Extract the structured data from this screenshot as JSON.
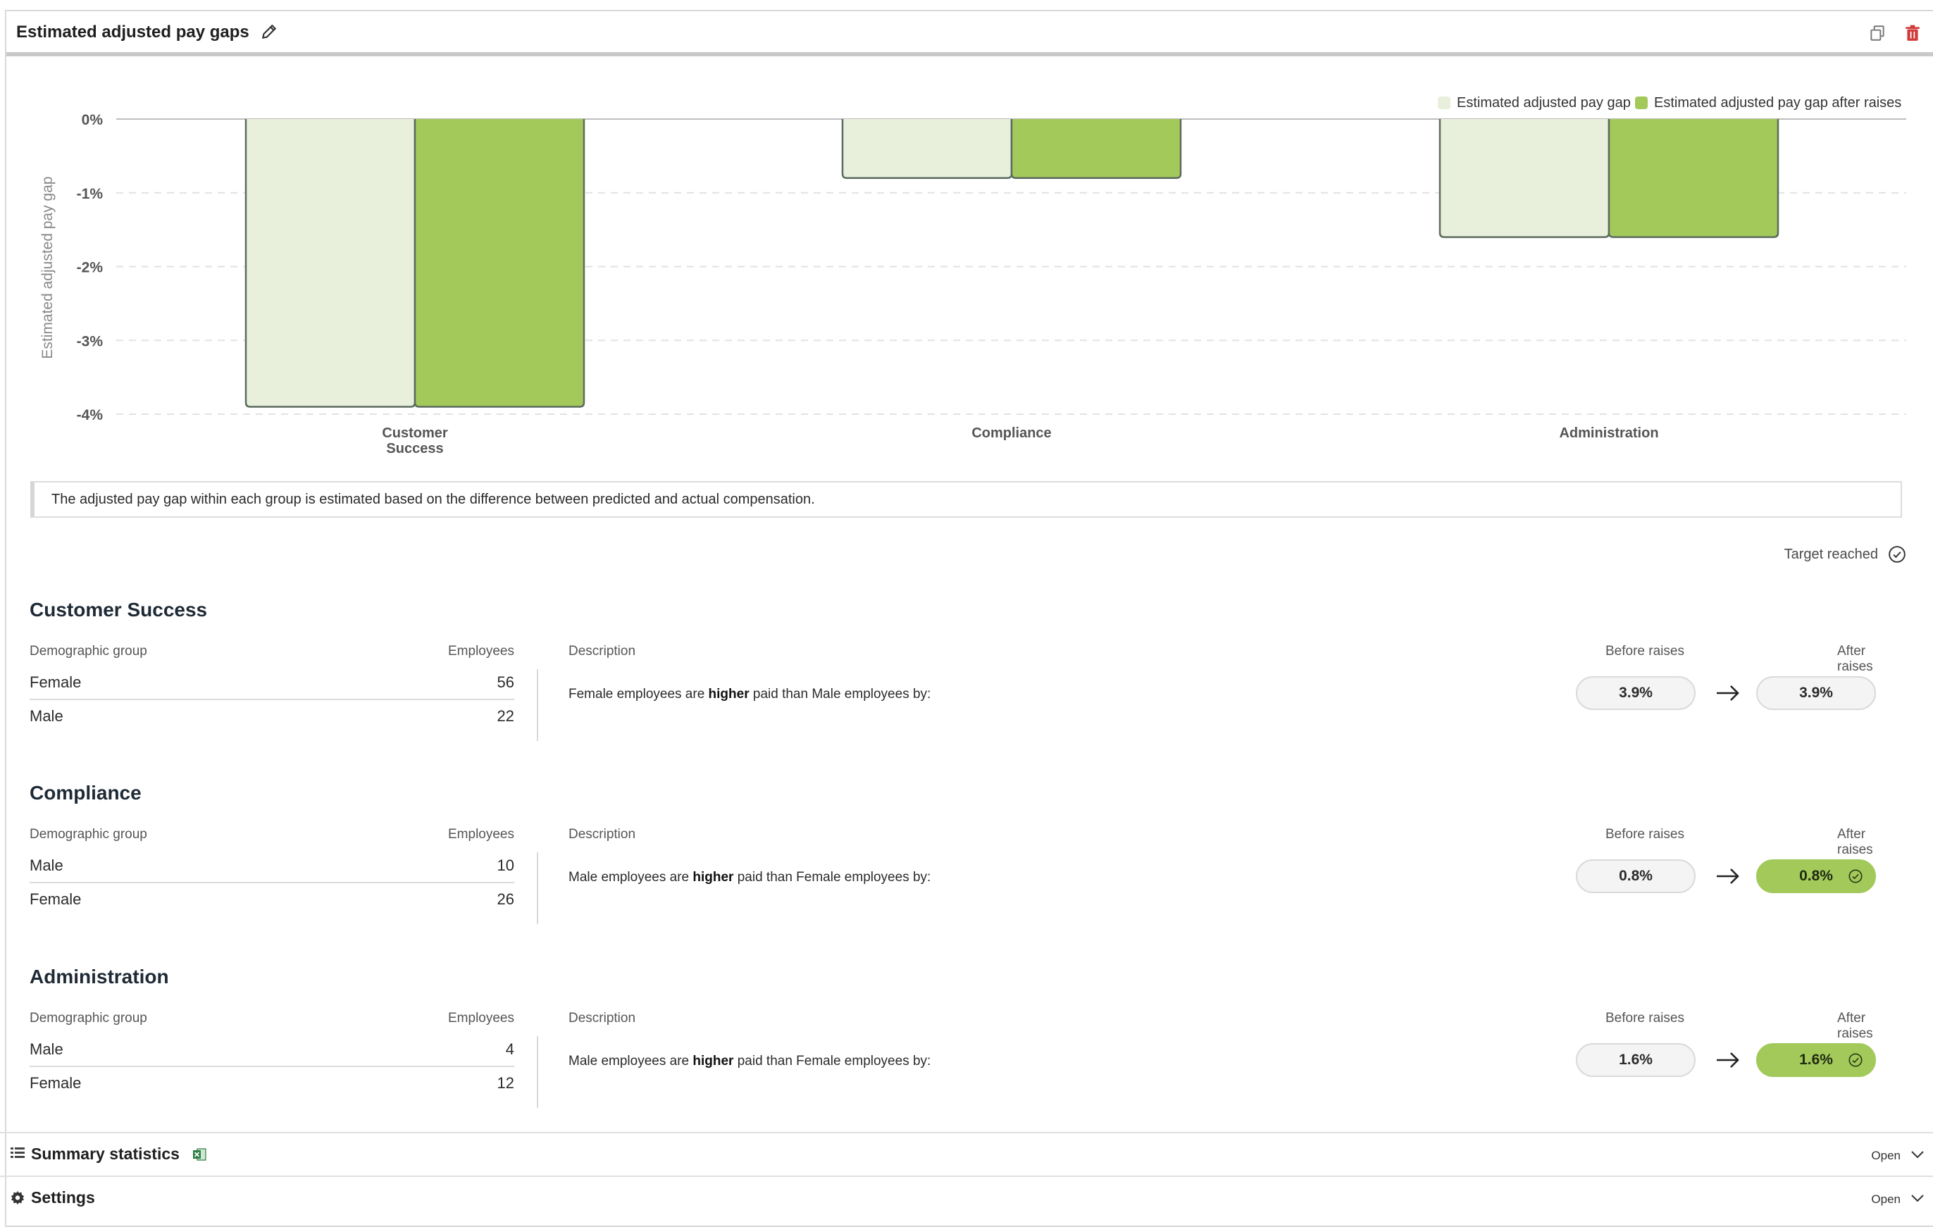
{
  "header": {
    "title": "Estimated adjusted pay gaps"
  },
  "chart_data": {
    "type": "bar",
    "ylabel": "Estimated adjusted pay gap",
    "xlabel": "",
    "ylim": [
      -4,
      0
    ],
    "yticks": [
      "0%",
      "-1%",
      "-2%",
      "-3%",
      "-4%"
    ],
    "grid": true,
    "legend_position": "top-right",
    "categories": [
      [
        "Customer",
        "Success"
      ],
      [
        "Compliance"
      ],
      [
        "Administration"
      ]
    ],
    "series": [
      {
        "name": "Estimated adjusted pay gap",
        "color": "#e8f0dc",
        "values": [
          -3.9,
          -0.8,
          -1.6
        ]
      },
      {
        "name": "Estimated adjusted pay gap after raises",
        "color": "#a3c95a",
        "values": [
          -3.9,
          -0.8,
          -1.6
        ]
      }
    ]
  },
  "note": "The adjusted pay gap within each group is estimated based on the difference between predicted and actual compensation.",
  "target_label": "Target reached",
  "columns": {
    "demographic": "Demographic group",
    "employees": "Employees",
    "description": "Description",
    "before": "Before raises",
    "after": "After raises"
  },
  "groups": [
    {
      "title": "Customer Success",
      "rows": [
        {
          "name": "Female",
          "count": "56"
        },
        {
          "name": "Male",
          "count": "22"
        }
      ],
      "desc_pre": "Female employees are",
      "desc_bold": "higher",
      "desc_post": "paid than Male employees by:",
      "before": "3.9%",
      "after": "3.9%",
      "after_reached": false
    },
    {
      "title": "Compliance",
      "rows": [
        {
          "name": "Male",
          "count": "10"
        },
        {
          "name": "Female",
          "count": "26"
        }
      ],
      "desc_pre": "Male employees are",
      "desc_bold": "higher",
      "desc_post": "paid than Female employees by:",
      "before": "0.8%",
      "after": "0.8%",
      "after_reached": true
    },
    {
      "title": "Administration",
      "rows": [
        {
          "name": "Male",
          "count": "4"
        },
        {
          "name": "Female",
          "count": "12"
        }
      ],
      "desc_pre": "Male employees are",
      "desc_bold": "higher",
      "desc_post": "paid than Female employees by:",
      "before": "1.6%",
      "after": "1.6%",
      "after_reached": true
    }
  ],
  "accordions": [
    {
      "label": "Summary statistics",
      "action": "Open"
    },
    {
      "label": "Settings",
      "action": "Open"
    }
  ]
}
